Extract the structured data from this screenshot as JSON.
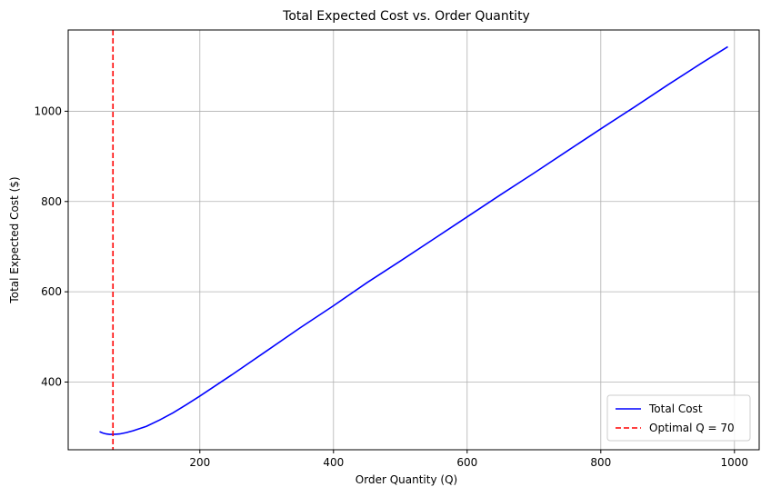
{
  "chart_data": {
    "type": "line",
    "title": "Total Expected Cost vs. Order Quantity",
    "xlabel": "Order Quantity (Q)",
    "ylabel": "Total Expected Cost ($)",
    "xlim": [
      3,
      1037
    ],
    "ylim": [
      250,
      1180
    ],
    "xticks": [
      200,
      400,
      600,
      800,
      1000
    ],
    "yticks": [
      400,
      600,
      800,
      1000
    ],
    "grid": true,
    "legend_position": "lower-right",
    "series": [
      {
        "name": "Total Cost",
        "color": "#0000ff",
        "style": "solid",
        "x": [
          50,
          55,
          60,
          65,
          70,
          80,
          90,
          100,
          120,
          140,
          160,
          180,
          200,
          250,
          300,
          350,
          400,
          450,
          500,
          550,
          600,
          650,
          700,
          750,
          800,
          850,
          900,
          950,
          990
        ],
        "y": [
          290,
          287,
          285,
          284,
          284,
          285,
          288,
          292,
          302,
          316,
          332,
          350,
          369,
          418,
          469,
          520,
          569,
          620,
          668,
          717,
          766,
          815,
          863,
          912,
          961,
          1009,
          1058,
          1106,
          1143
        ]
      },
      {
        "name": "Optimal Q = 70",
        "color": "#ff0000",
        "style": "dashed",
        "vline_x": 70
      }
    ]
  }
}
